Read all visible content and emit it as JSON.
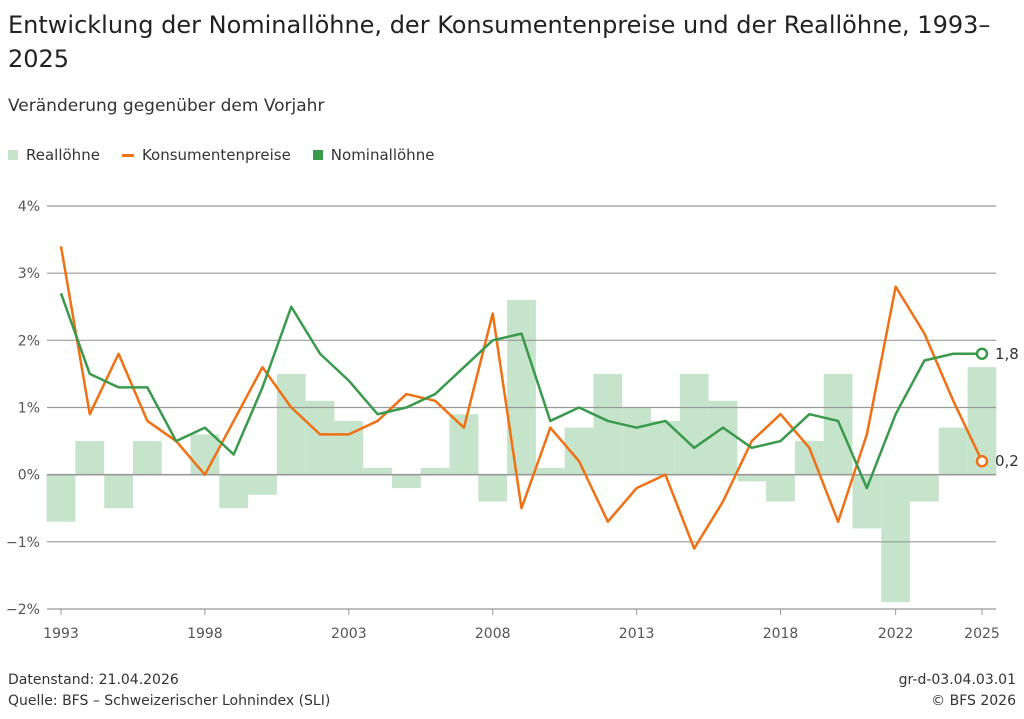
{
  "title": "Entwicklung der Nominallöhne, der Konsumentenpreise und der Reallöhne, 1993–2025",
  "subtitle": "Veränderung gegenüber dem Vorjahr",
  "footer": {
    "datenstand": "Datenstand: 21.04.2026",
    "quelle": "Quelle: BFS – Schweizerischer Lohnindex (SLI)",
    "code": "gr-d-03.04.03.01",
    "copyright": "© BFS 2026"
  },
  "chart_data": {
    "type": "bar+line",
    "title": "Entwicklung der Nominallöhne, der Konsumentenpreise und der Reallöhne, 1993–2025",
    "subtitle": "Veränderung gegenüber dem Vorjahr",
    "x": [
      1993,
      1994,
      1995,
      1996,
      1997,
      1998,
      1999,
      2000,
      2001,
      2002,
      2003,
      2004,
      2005,
      2006,
      2007,
      2008,
      2009,
      2010,
      2011,
      2012,
      2013,
      2014,
      2015,
      2016,
      2017,
      2018,
      2019,
      2020,
      2021,
      2022,
      2023,
      2024,
      2025
    ],
    "x_tick_labels": [
      "1993",
      "1998",
      "2003",
      "2008",
      "2013",
      "2018",
      "2022",
      "2025"
    ],
    "y_tick_labels": [
      "4%",
      "3%",
      "2%",
      "1%",
      "0%",
      "−1%",
      "−2%"
    ],
    "ylim": [
      -2,
      4
    ],
    "grid": true,
    "legend_placement": "top-left",
    "series": [
      {
        "name": "Reallöhne",
        "type": "bar",
        "color": "#c6e3cb",
        "values": [
          -0.7,
          0.5,
          -0.5,
          0.5,
          0.0,
          0.6,
          -0.5,
          -0.3,
          1.5,
          1.1,
          0.8,
          0.1,
          -0.2,
          0.1,
          0.9,
          -0.4,
          2.6,
          0.1,
          0.7,
          1.5,
          1.0,
          0.8,
          1.5,
          1.1,
          -0.1,
          -0.4,
          0.5,
          1.5,
          -0.8,
          -1.9,
          -0.4,
          0.7,
          1.6
        ]
      },
      {
        "name": "Konsumentenpreise",
        "type": "line",
        "color": "#f07014",
        "values": [
          3.4,
          0.9,
          1.8,
          0.8,
          0.5,
          0.0,
          0.8,
          1.6,
          1.0,
          0.6,
          0.6,
          0.8,
          1.2,
          1.1,
          0.7,
          2.4,
          -0.5,
          0.7,
          0.2,
          -0.7,
          -0.2,
          0.0,
          -1.1,
          -0.4,
          0.5,
          0.9,
          0.4,
          -0.7,
          0.6,
          2.8,
          2.1,
          1.1,
          0.2
        ],
        "end_label": "0,2"
      },
      {
        "name": "Nominallöhne",
        "type": "line",
        "color": "#3a9a4c",
        "values": [
          2.7,
          1.5,
          1.3,
          1.3,
          0.5,
          0.7,
          0.3,
          1.3,
          2.5,
          1.8,
          1.4,
          0.9,
          1.0,
          1.2,
          1.6,
          2.0,
          2.1,
          0.8,
          1.0,
          0.8,
          0.7,
          0.8,
          0.4,
          0.7,
          0.4,
          0.5,
          0.9,
          0.8,
          -0.2,
          0.9,
          1.7,
          1.8,
          1.8
        ],
        "end_label": "1,8"
      }
    ]
  }
}
